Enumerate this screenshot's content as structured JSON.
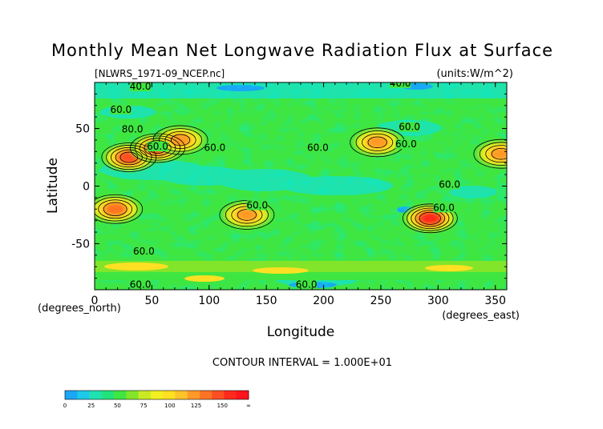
{
  "chart_data": {
    "type": "heatmap",
    "title": "Monthly Mean Net Longwave Radiation Flux at Surface",
    "subtitle": "[NLWRS_1971-09_NCEP.nc]",
    "units": "(units:W/m^2)",
    "xlabel": "Longitude",
    "ylabel": "Latitude",
    "x_unit_note": "(degrees_east)",
    "y_unit_note": "(degrees_north)",
    "xlim": [
      0,
      360
    ],
    "ylim": [
      -90,
      90
    ],
    "x_ticks": [
      0,
      50,
      100,
      150,
      200,
      250,
      300,
      350
    ],
    "y_ticks": [
      -50,
      0,
      50
    ],
    "contour_interval_text": "CONTOUR INTERVAL = 1.000E+01",
    "contour_labels": [
      {
        "text": "40.0",
        "lon": 40,
        "lat": 85
      },
      {
        "text": "40.0",
        "lon": 267,
        "lat": 88
      },
      {
        "text": "60.0",
        "lon": 23,
        "lat": 65
      },
      {
        "text": "80.0",
        "lon": 33,
        "lat": 48
      },
      {
        "text": "60.0",
        "lon": 55,
        "lat": 33
      },
      {
        "text": "60.0",
        "lon": 105,
        "lat": 32
      },
      {
        "text": "60.0",
        "lon": 195,
        "lat": 32
      },
      {
        "text": "60.0",
        "lon": 275,
        "lat": 50
      },
      {
        "text": "60.0",
        "lon": 272,
        "lat": 35
      },
      {
        "text": "60.0",
        "lon": 310,
        "lat": 0
      },
      {
        "text": "60.0",
        "lon": 142,
        "lat": -18
      },
      {
        "text": "60.0",
        "lon": 305,
        "lat": -20
      },
      {
        "text": "60.0",
        "lon": 43,
        "lat": -58
      },
      {
        "text": "60.0",
        "lon": 40,
        "lat": -87
      },
      {
        "text": "60.0",
        "lon": 185,
        "lat": -87
      }
    ],
    "features": [
      {
        "lon": 30,
        "lat": 25,
        "max": 160
      },
      {
        "lon": 55,
        "lat": 33,
        "max": 160
      },
      {
        "lon": 75,
        "lat": 40,
        "max": 130
      },
      {
        "lon": 18,
        "lat": -20,
        "max": 150
      },
      {
        "lon": 133,
        "lat": -25,
        "max": 140
      },
      {
        "lon": 247,
        "lat": 38,
        "max": 130
      },
      {
        "lon": 293,
        "lat": -28,
        "max": 170
      },
      {
        "lon": 355,
        "lat": 28,
        "max": 130
      }
    ],
    "colorbar": {
      "labels": [
        "0",
        "25",
        "50",
        "75",
        "100",
        "125",
        "150",
        "∞"
      ],
      "colors": [
        "#1aa7f5",
        "#1dc8e8",
        "#1ee3b0",
        "#22e37a",
        "#3fe641",
        "#82e52a",
        "#c8ea25",
        "#f3f021",
        "#ffe022",
        "#ffc32a",
        "#ff9a28",
        "#ff7424",
        "#ff4f22",
        "#ff2a1e",
        "#ff141b"
      ]
    }
  }
}
